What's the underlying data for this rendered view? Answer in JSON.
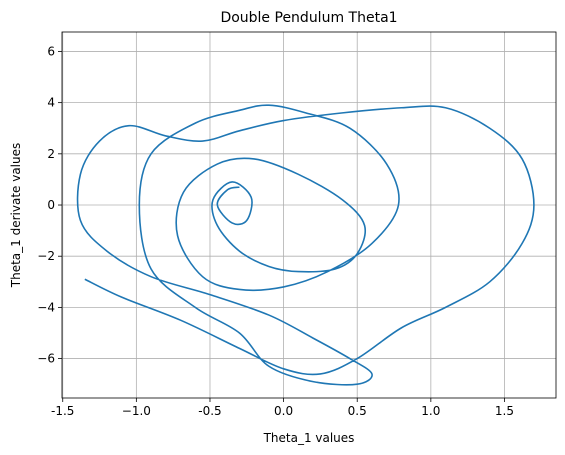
{
  "chart_data": {
    "type": "line",
    "title": "Double Pendulum Theta1",
    "x_label": "Theta_1 values",
    "y_label": "Theta_1 derivate values",
    "xlim": [
      -1.505,
      1.85
    ],
    "ylim": [
      -7.54,
      6.76
    ],
    "xticks": [
      -1.5,
      {
        "value": -1.0,
        "label": "−1.0"
      },
      -0.5,
      {
        "value": 0,
        "label": "0.0"
      },
      0.5,
      {
        "value": 1,
        "label": "1.0"
      },
      1.5
    ],
    "yticks": [
      {
        "value": -6,
        "label": "−6"
      },
      {
        "value": -4,
        "label": "−4"
      },
      {
        "value": -2,
        "label": "−2"
      },
      0,
      2,
      4,
      6
    ],
    "grid": true,
    "series": [
      {
        "color": "#1f77b4",
        "x": [
          -1.35,
          -1.1,
          -0.7,
          -0.3,
          0.0,
          0.25,
          0.5,
          0.8,
          1.1,
          1.4,
          1.62,
          1.7,
          1.62,
          1.4,
          1.1,
          0.8,
          0.4,
          0.0,
          -0.3,
          -0.55,
          -0.8,
          -1.05,
          -1.25,
          -1.38,
          -1.38,
          -1.2,
          -0.9,
          -0.5,
          -0.1,
          0.2,
          0.45,
          0.6,
          0.5,
          0.2,
          -0.1,
          -0.3,
          -0.6,
          -0.9,
          -0.98,
          -0.9,
          -0.6,
          -0.3,
          -0.1,
          0.15,
          0.45,
          0.7,
          0.78,
          0.6,
          0.3,
          0.0,
          -0.3,
          -0.55,
          -0.72,
          -0.68,
          -0.45,
          -0.2,
          0.1,
          0.4,
          0.55,
          0.5,
          0.35,
          0.1,
          -0.1,
          -0.3,
          -0.45,
          -0.48,
          -0.35,
          -0.22,
          -0.25,
          -0.35,
          -0.45,
          -0.38,
          -0.3
        ],
        "y": [
          -2.9,
          -3.6,
          -4.5,
          -5.6,
          -6.4,
          -6.6,
          -6.0,
          -4.8,
          -4.0,
          -3.0,
          -1.5,
          0.0,
          1.8,
          3.0,
          3.8,
          3.8,
          3.6,
          3.3,
          2.9,
          2.5,
          2.7,
          3.1,
          2.5,
          1.2,
          -0.6,
          -1.8,
          -2.8,
          -3.5,
          -4.3,
          -5.2,
          -6.0,
          -6.6,
          -7.0,
          -6.9,
          -6.3,
          -5.0,
          -4.0,
          -2.5,
          0.0,
          2.0,
          3.2,
          3.7,
          3.9,
          3.6,
          3.0,
          1.6,
          0.0,
          -1.5,
          -2.6,
          -3.2,
          -3.3,
          -2.8,
          -1.2,
          0.5,
          1.6,
          1.8,
          1.2,
          0.2,
          -0.8,
          -1.9,
          -2.5,
          -2.6,
          -2.4,
          -1.8,
          -0.8,
          0.2,
          0.9,
          0.3,
          -0.6,
          -0.7,
          0.0,
          0.6,
          0.7
        ]
      }
    ]
  }
}
